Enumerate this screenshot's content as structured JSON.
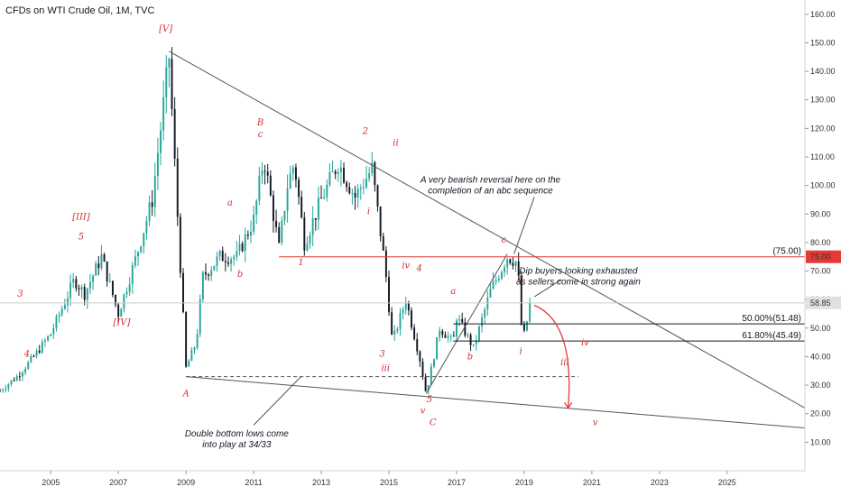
{
  "chart_data": {
    "type": "candlestick",
    "title": "CFDs on WTI Crude Oil, 1M, TVC",
    "ylim": [
      0,
      165
    ],
    "y_ticks": [
      10,
      20,
      30,
      40,
      50,
      60,
      70,
      80,
      90,
      100,
      110,
      120,
      130,
      140,
      150,
      160
    ],
    "y_tick_labels": [
      "10.00",
      "20.00",
      "30.00",
      "40.00",
      "50.00",
      "60.00",
      "70.00",
      "80.00",
      "90.00",
      "100.00",
      "110.00",
      "120.00",
      "130.00",
      "140.00",
      "150.00",
      "160.00"
    ],
    "xlim": [
      2003.5,
      2027.3
    ],
    "x_ticks": [
      2005,
      2007,
      2009,
      2011,
      2013,
      2015,
      2017,
      2019,
      2021,
      2023,
      2025
    ],
    "x_tick_labels": [
      "2005",
      "2007",
      "2009",
      "2011",
      "2013",
      "2015",
      "2017",
      "2019",
      "2021",
      "2023",
      "2025"
    ],
    "key_levels": [
      {
        "t": 2003.5,
        "price": 28
      },
      {
        "t": 2004.0,
        "price": 33
      },
      {
        "t": 2004.5,
        "price": 40
      },
      {
        "t": 2005.0,
        "price": 48
      },
      {
        "t": 2005.3,
        "price": 56
      },
      {
        "t": 2005.7,
        "price": 67
      },
      {
        "t": 2006.0,
        "price": 62
      },
      {
        "t": 2006.5,
        "price": 75
      },
      {
        "t": 2007.0,
        "price": 55
      },
      {
        "t": 2007.5,
        "price": 74
      },
      {
        "t": 2008.0,
        "price": 95
      },
      {
        "t": 2008.5,
        "price": 145
      },
      {
        "t": 2008.7,
        "price": 100
      },
      {
        "t": 2009.0,
        "price": 36
      },
      {
        "t": 2009.3,
        "price": 45
      },
      {
        "t": 2009.5,
        "price": 68
      },
      {
        "t": 2010.0,
        "price": 75
      },
      {
        "t": 2010.5,
        "price": 75
      },
      {
        "t": 2011.0,
        "price": 88
      },
      {
        "t": 2011.3,
        "price": 110
      },
      {
        "t": 2011.75,
        "price": 78
      },
      {
        "t": 2012.0,
        "price": 100
      },
      {
        "t": 2012.2,
        "price": 108
      },
      {
        "t": 2012.5,
        "price": 80
      },
      {
        "t": 2013.0,
        "price": 95
      },
      {
        "t": 2013.5,
        "price": 108
      },
      {
        "t": 2014.0,
        "price": 96
      },
      {
        "t": 2014.5,
        "price": 106
      },
      {
        "t": 2014.9,
        "price": 70
      },
      {
        "t": 2015.1,
        "price": 45
      },
      {
        "t": 2015.5,
        "price": 60
      },
      {
        "t": 2015.9,
        "price": 40
      },
      {
        "t": 2016.1,
        "price": 27
      },
      {
        "t": 2016.5,
        "price": 50
      },
      {
        "t": 2016.9,
        "price": 45
      },
      {
        "t": 2017.0,
        "price": 54
      },
      {
        "t": 2017.5,
        "price": 43
      },
      {
        "t": 2018.0,
        "price": 63
      },
      {
        "t": 2018.5,
        "price": 75
      },
      {
        "t": 2018.8,
        "price": 73
      },
      {
        "t": 2018.95,
        "price": 45
      },
      {
        "t": 2019.2,
        "price": 58.85
      }
    ],
    "last_price": "58.85",
    "last_price_value": 58.85,
    "level_75_label": "(75.00)",
    "level_75_badge": "75.00",
    "fib_levels": [
      {
        "label": "50.00%(51.48)",
        "price": 51.48
      },
      {
        "label": "61.80%(45.49)",
        "price": 45.49
      }
    ],
    "dashed_level_price": 33,
    "series": [
      {
        "name": "",
        "type": "candlestick"
      }
    ]
  },
  "colors": {
    "bull": "#26a69a",
    "bear": "#131722",
    "elliott": "#d32f2f",
    "red_line": "#e53935",
    "badge_bg": "#e53935",
    "last_badge_bg": "#e0e0e0",
    "trend": "#555555"
  },
  "wave_labels": [
    {
      "text": "[V]",
      "t": 2008.4,
      "p": 154
    },
    {
      "text": "[III]",
      "t": 2005.9,
      "p": 88
    },
    {
      "text": "5",
      "t": 2005.9,
      "p": 81
    },
    {
      "text": "3",
      "t": 2004.1,
      "p": 61
    },
    {
      "text": "4",
      "t": 2004.3,
      "p": 40
    },
    {
      "text": "[IV]",
      "t": 2007.1,
      "p": 51
    },
    {
      "text": "A",
      "t": 2009.0,
      "p": 26
    },
    {
      "text": "B",
      "t": 2011.2,
      "p": 121
    },
    {
      "text": "c",
      "t": 2011.2,
      "p": 117
    },
    {
      "text": "a",
      "t": 2010.3,
      "p": 93
    },
    {
      "text": "b",
      "t": 2010.6,
      "p": 68
    },
    {
      "text": "2",
      "t": 2014.3,
      "p": 118
    },
    {
      "text": "ii",
      "t": 2015.2,
      "p": 114
    },
    {
      "text": "1",
      "t": 2012.4,
      "p": 72
    },
    {
      "text": "i",
      "t": 2014.4,
      "p": 90
    },
    {
      "text": "iv",
      "t": 2015.5,
      "p": 71
    },
    {
      "text": "4",
      "t": 2015.9,
      "p": 70
    },
    {
      "text": "3",
      "t": 2014.8,
      "p": 40
    },
    {
      "text": "iii",
      "t": 2014.9,
      "p": 35
    },
    {
      "text": "5",
      "t": 2016.2,
      "p": 24
    },
    {
      "text": "v",
      "t": 2016.0,
      "p": 20
    },
    {
      "text": "C",
      "t": 2016.3,
      "p": 16
    },
    {
      "text": "a",
      "t": 2016.9,
      "p": 62
    },
    {
      "text": "b",
      "t": 2017.4,
      "p": 39
    },
    {
      "text": "c",
      "t": 2018.4,
      "p": 80
    },
    {
      "text": "ii",
      "t": 2018.9,
      "p": 66
    },
    {
      "text": "i",
      "t": 2018.9,
      "p": 41
    },
    {
      "text": "iii",
      "t": 2020.2,
      "p": 37
    },
    {
      "text": "iv",
      "t": 2020.8,
      "p": 44
    },
    {
      "text": "v",
      "t": 2021.1,
      "p": 16
    }
  ],
  "annotations": [
    {
      "line1": "A very bearish reversal here on the",
      "line2": "completion of an abc sequence",
      "t": 2018.0,
      "p": 101
    },
    {
      "line1": "Dip buyers looking exhausted",
      "line2": "as sellers come in strong again",
      "t": 2020.6,
      "p": 69
    },
    {
      "line1": "Double bottom lows come",
      "line2": "into play at 34/33",
      "t": 2010.5,
      "p": 12
    }
  ]
}
